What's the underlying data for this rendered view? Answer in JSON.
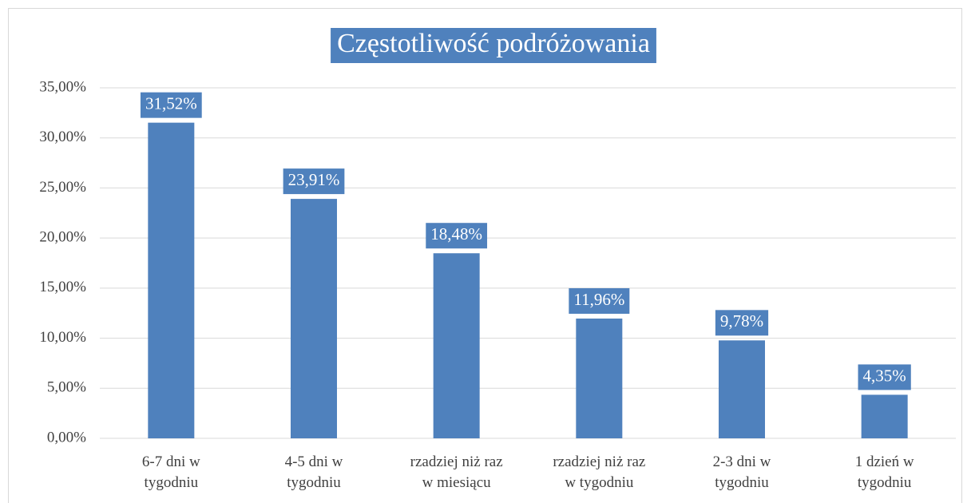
{
  "chart_data": {
    "type": "bar",
    "title": "Częstotliwość podróżowania",
    "categories": [
      [
        "6-7 dni w",
        "tygodniu"
      ],
      [
        "4-5 dni w",
        "tygodniu"
      ],
      [
        "rzadziej niż raz",
        "w miesiącu"
      ],
      [
        "rzadziej niż raz",
        "w tygodniu"
      ],
      [
        "2-3 dni w",
        "tygodniu"
      ],
      [
        "1 dzień w",
        "tygodniu"
      ]
    ],
    "values": [
      31.52,
      23.91,
      18.48,
      11.96,
      9.78,
      4.35
    ],
    "value_labels": [
      "31,52%",
      "23,91%",
      "18,48%",
      "11,96%",
      "9,78%",
      "4,35%"
    ],
    "color": "#4f81bd",
    "ylim": [
      0,
      35
    ],
    "yticks": [
      {
        "value": 0,
        "label": "0,00%"
      },
      {
        "value": 5,
        "label": "5,00%"
      },
      {
        "value": 10,
        "label": "10,00%"
      },
      {
        "value": 15,
        "label": "15,00%"
      },
      {
        "value": 20,
        "label": "20,00%"
      },
      {
        "value": 25,
        "label": "25,00%"
      },
      {
        "value": 30,
        "label": "30,00%"
      },
      {
        "value": 35,
        "label": "35,00%"
      }
    ],
    "grid": true
  }
}
